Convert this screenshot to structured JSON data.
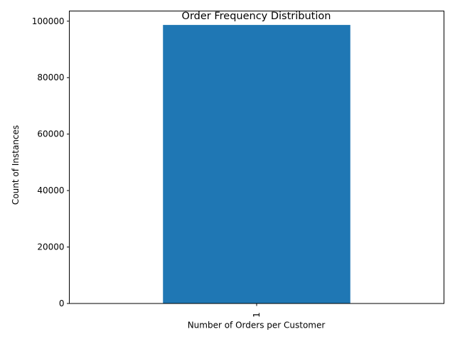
{
  "chart_data": {
    "type": "bar",
    "title": "Order Frequency Distribution",
    "xlabel": "Number of Orders per Customer",
    "ylabel": "Count of Instances",
    "categories": [
      "1"
    ],
    "values": [
      98666
    ],
    "ylim": [
      0,
      103599
    ],
    "yticks": [
      0,
      20000,
      40000,
      60000,
      80000,
      100000
    ],
    "grid": false,
    "legend": "none",
    "bar_color": "#1f77b4"
  }
}
